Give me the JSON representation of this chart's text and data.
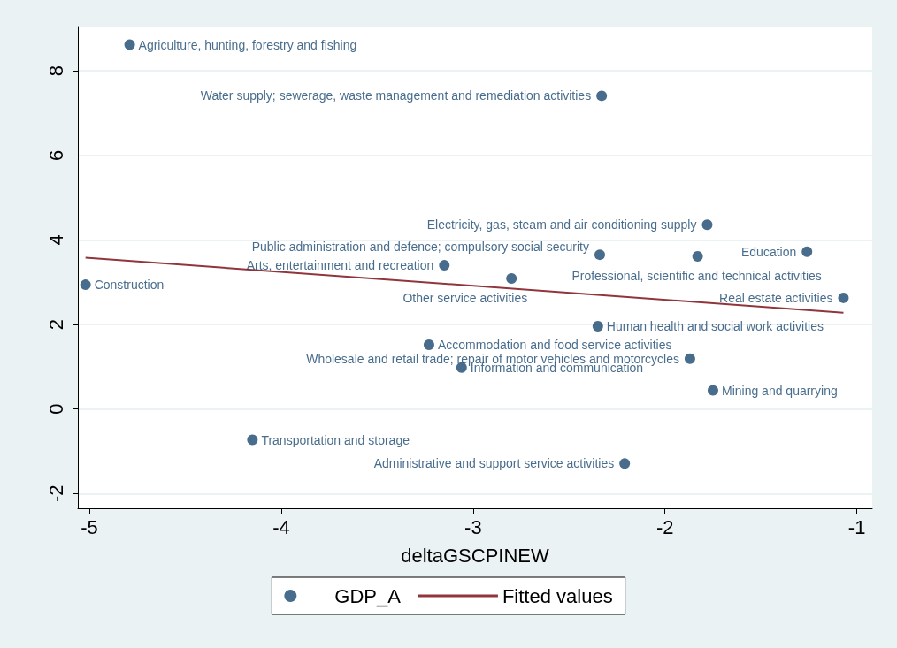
{
  "chart_data": {
    "type": "scatter",
    "xlabel": "deltaGSCPINEW",
    "xlim": [
      -5.06,
      -0.92
    ],
    "ylim": [
      -2.35,
      9.05
    ],
    "xticks": [
      -5,
      -4,
      -3,
      -2,
      -1
    ],
    "yticks": [
      -2,
      0,
      2,
      4,
      6,
      8
    ],
    "grid": "y",
    "legend": "bottom",
    "marker": "circle",
    "series": [
      {
        "name": "GDP_A",
        "color": "#1a476f",
        "x": [
          -4.79,
          -2.33,
          -1.78,
          -1.26,
          -2.34,
          -1.83,
          -3.15,
          -5.02,
          -2.8,
          -1.07,
          -2.35,
          -3.23,
          -3.06,
          -1.87,
          -1.75,
          -4.15,
          -2.21
        ],
        "values": [
          8.62,
          7.41,
          4.36,
          3.72,
          3.65,
          3.61,
          3.4,
          2.94,
          3.09,
          2.63,
          1.96,
          1.52,
          0.98,
          1.19,
          0.44,
          -0.73,
          -1.29
        ],
        "value_labels": [
          "Agriculture, hunting, forestry and fishing",
          "Water supply; sewerage, waste management and remediation activities",
          "Electricity, gas, steam and air conditioning supply",
          "Education",
          "Public administration and defence; compulsory social security",
          "Professional, scientific and technical activities",
          "Arts, entertainment and recreation",
          "Construction",
          "Other service activities",
          "Real estate activities",
          "Human health and social work activities",
          "Accommodation and food service activities",
          "Information and communication",
          "Wholesale and retail trade; repair of motor vehicles and motorcycles",
          "Mining and quarrying",
          "Transportation and storage",
          "Administrative and support service activities"
        ]
      },
      {
        "name": "Fitted values",
        "type": "line",
        "color": "#90353b",
        "x": [
          -5.02,
          -1.07
        ],
        "values": [
          3.58,
          2.28
        ],
        "marker": "none"
      }
    ]
  }
}
